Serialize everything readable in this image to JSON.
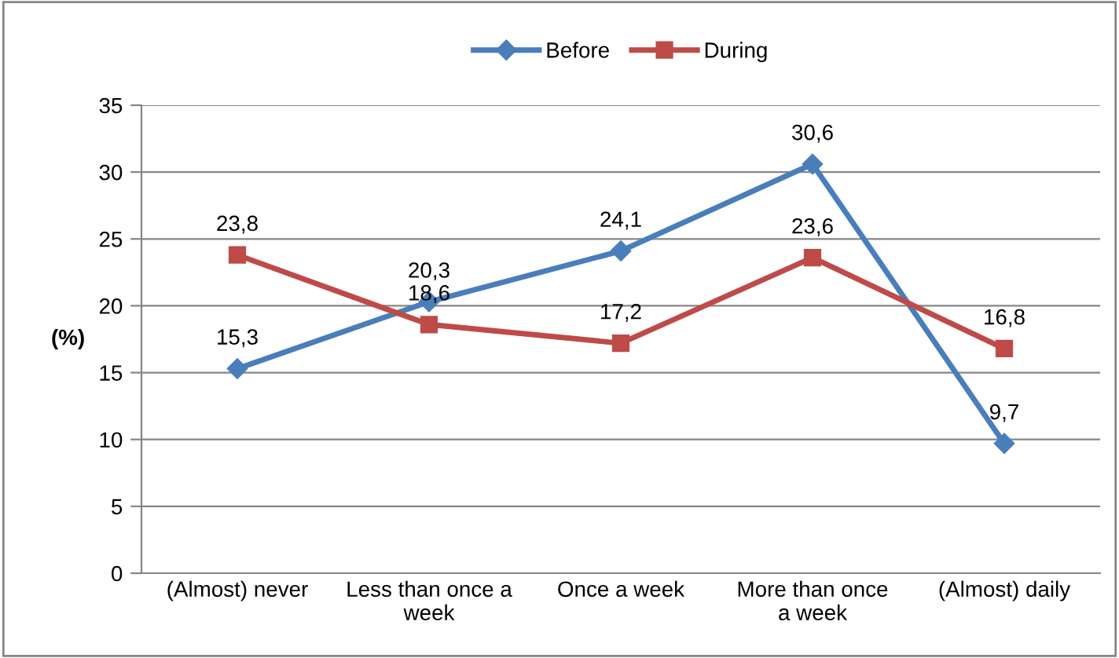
{
  "chart_data": {
    "type": "line",
    "ylabel": "(%)",
    "categories": [
      "(Almost) never",
      "Less than once a\nweek",
      "Once a week",
      "More than once\na week",
      "(Almost) daily"
    ],
    "series": [
      {
        "name": "Before",
        "color": "#4a7ebb",
        "marker": "diamond",
        "values": [
          15.3,
          20.3,
          24.1,
          30.6,
          9.7
        ],
        "value_labels": [
          "15,3",
          "20,3",
          "24,1",
          "30,6",
          "9,7"
        ]
      },
      {
        "name": "During",
        "color": "#be4b48",
        "marker": "square",
        "values": [
          23.8,
          18.6,
          17.2,
          23.6,
          16.8
        ],
        "value_labels": [
          "23,8",
          "18,6",
          "17,2",
          "23,6",
          "16,8"
        ]
      }
    ],
    "ylim": [
      0,
      35
    ],
    "yticks": [
      0,
      5,
      10,
      15,
      20,
      25,
      30,
      35
    ],
    "grid": "y",
    "legend": "top",
    "line_style": "solid"
  }
}
